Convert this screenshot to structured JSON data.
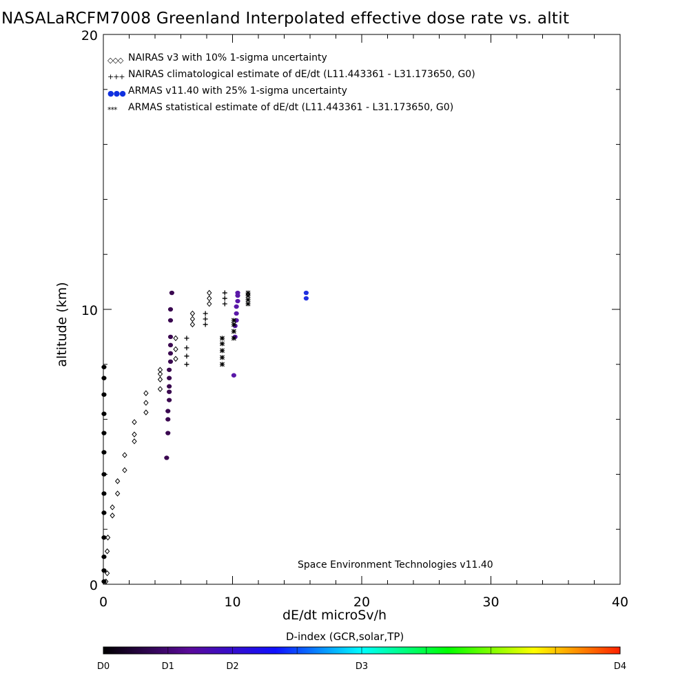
{
  "chart_data": {
    "type": "scatter",
    "title": "NASALaRCFM7008  Greenland Interpolated effective dose rate vs. altit",
    "xlabel": "dE/dt microSv/h",
    "ylabel": "altitude (km)",
    "xlim": [
      0,
      40
    ],
    "ylim": [
      0,
      20
    ],
    "xticks": [
      "0",
      "10",
      "20",
      "30",
      "40"
    ],
    "yticks": [
      "0",
      "10",
      "20"
    ],
    "annotation": "Space Environment Technologies v11.40",
    "legend_placement": "top-left",
    "legend": [
      {
        "marker": "◇◇◇",
        "label": "NAIRAS v3 with 10% 1-sigma uncertainty"
      },
      {
        "marker": "+++",
        "label": "NAIRAS climatological estimate of dE/dt (L11.443361 - L31.173650, G0)"
      },
      {
        "marker": "●●●",
        "label": "ARMAS v11.40 with 25% 1-sigma uncertainty",
        "color": "#1030e0"
      },
      {
        "marker": "***",
        "label": "ARMAS statistical estimate of dE/dt (L11.443361 - L31.173650, G0)"
      }
    ],
    "series": [
      {
        "name": "NAIRAS v3",
        "marker": "diamond",
        "color": "#000000",
        "points": [
          [
            0.2,
            0.1
          ],
          [
            0.3,
            0.4
          ],
          [
            0.3,
            1.2
          ],
          [
            0.35,
            1.7
          ],
          [
            0.7,
            2.5
          ],
          [
            0.7,
            2.8
          ],
          [
            1.1,
            3.3
          ],
          [
            1.1,
            3.75
          ],
          [
            1.65,
            4.15
          ],
          [
            1.65,
            4.7
          ],
          [
            2.4,
            5.2
          ],
          [
            2.4,
            5.45
          ],
          [
            2.4,
            5.9
          ],
          [
            3.3,
            6.25
          ],
          [
            3.3,
            6.6
          ],
          [
            3.3,
            6.95
          ],
          [
            4.4,
            7.1
          ],
          [
            4.4,
            7.45
          ],
          [
            4.4,
            7.65
          ],
          [
            4.4,
            7.8
          ],
          [
            5.6,
            8.2
          ],
          [
            5.6,
            8.55
          ],
          [
            5.6,
            8.95
          ],
          [
            6.9,
            9.45
          ],
          [
            6.9,
            9.65
          ],
          [
            6.9,
            9.85
          ],
          [
            8.2,
            10.2
          ],
          [
            8.2,
            10.4
          ],
          [
            8.2,
            10.6
          ]
        ]
      },
      {
        "name": "NAIRAS climatological",
        "marker": "plus",
        "color": "#000000",
        "points": [
          [
            6.45,
            8.0
          ],
          [
            6.45,
            8.3
          ],
          [
            6.45,
            8.6
          ],
          [
            6.45,
            8.95
          ],
          [
            7.9,
            9.45
          ],
          [
            7.9,
            9.65
          ],
          [
            7.9,
            9.85
          ],
          [
            9.4,
            10.2
          ],
          [
            9.4,
            10.4
          ],
          [
            9.4,
            10.6
          ]
        ]
      },
      {
        "name": "ARMAS v11.40",
        "marker": "dot",
        "points": [
          [
            0.05,
            0.1,
            "#000000"
          ],
          [
            0.05,
            0.5,
            "#000000"
          ],
          [
            0.05,
            1.0,
            "#000000"
          ],
          [
            0.05,
            1.7,
            "#000000"
          ],
          [
            0.05,
            2.6,
            "#000000"
          ],
          [
            0.05,
            3.3,
            "#000000"
          ],
          [
            0.05,
            4.0,
            "#000000"
          ],
          [
            0.05,
            4.8,
            "#000000"
          ],
          [
            0.05,
            5.5,
            "#000000"
          ],
          [
            0.05,
            6.2,
            "#000000"
          ],
          [
            0.05,
            6.9,
            "#000000"
          ],
          [
            0.05,
            7.5,
            "#000000"
          ],
          [
            0.05,
            7.9,
            "#000000"
          ],
          [
            4.9,
            4.6,
            "#3a0850"
          ],
          [
            5.0,
            5.5,
            "#3a0850"
          ],
          [
            5.0,
            6.0,
            "#3a0850"
          ],
          [
            5.0,
            6.3,
            "#3a0850"
          ],
          [
            5.1,
            6.7,
            "#3a0850"
          ],
          [
            5.1,
            7.0,
            "#3a0850"
          ],
          [
            5.1,
            7.2,
            "#3a0850"
          ],
          [
            5.1,
            7.5,
            "#3a0850"
          ],
          [
            5.1,
            7.8,
            "#3a0850"
          ],
          [
            5.2,
            8.1,
            "#3a0850"
          ],
          [
            5.2,
            8.4,
            "#3a0850"
          ],
          [
            5.2,
            8.7,
            "#3a0850"
          ],
          [
            5.2,
            9.0,
            "#3a0850"
          ],
          [
            5.2,
            9.6,
            "#3a0850"
          ],
          [
            5.2,
            10.0,
            "#3a0850"
          ],
          [
            5.3,
            10.6,
            "#3a0850"
          ],
          [
            10.1,
            7.6,
            "#5a18a8"
          ],
          [
            10.2,
            9.0,
            "#5a18a8"
          ],
          [
            10.2,
            9.4,
            "#5a18a8"
          ],
          [
            10.3,
            9.6,
            "#5a18a8"
          ],
          [
            10.3,
            9.85,
            "#5a18a8"
          ],
          [
            10.3,
            10.1,
            "#5a18a8"
          ],
          [
            10.4,
            10.3,
            "#5a18a8"
          ],
          [
            10.4,
            10.5,
            "#5a18a8"
          ],
          [
            10.4,
            10.6,
            "#5a18a8"
          ],
          [
            15.7,
            10.4,
            "#2030e0"
          ],
          [
            15.7,
            10.6,
            "#2030e0"
          ]
        ]
      },
      {
        "name": "ARMAS statistical",
        "marker": "star",
        "color": "#000000",
        "points": [
          [
            9.2,
            8.0
          ],
          [
            9.2,
            8.25
          ],
          [
            9.2,
            8.5
          ],
          [
            9.2,
            8.75
          ],
          [
            9.2,
            8.95
          ],
          [
            10.1,
            8.95
          ],
          [
            10.1,
            9.2
          ],
          [
            10.1,
            9.45
          ],
          [
            10.1,
            9.6
          ],
          [
            11.2,
            10.2
          ],
          [
            11.2,
            10.35
          ],
          [
            11.2,
            10.5
          ],
          [
            11.2,
            10.6
          ]
        ]
      }
    ],
    "colorbar": {
      "title": "D-index (GCR,solar,TP)",
      "labels": [
        {
          "text": "D0",
          "pos": 0
        },
        {
          "text": "D1",
          "pos": 0.125
        },
        {
          "text": "D2",
          "pos": 0.25
        },
        {
          "text": "D3",
          "pos": 0.5
        },
        {
          "text": "D4",
          "pos": 1
        }
      ],
      "stops": [
        "#000000",
        "#5a0a9a",
        "#1010ff",
        "#00ffff",
        "#00ff00",
        "#ffff00",
        "#ff2000"
      ]
    }
  }
}
